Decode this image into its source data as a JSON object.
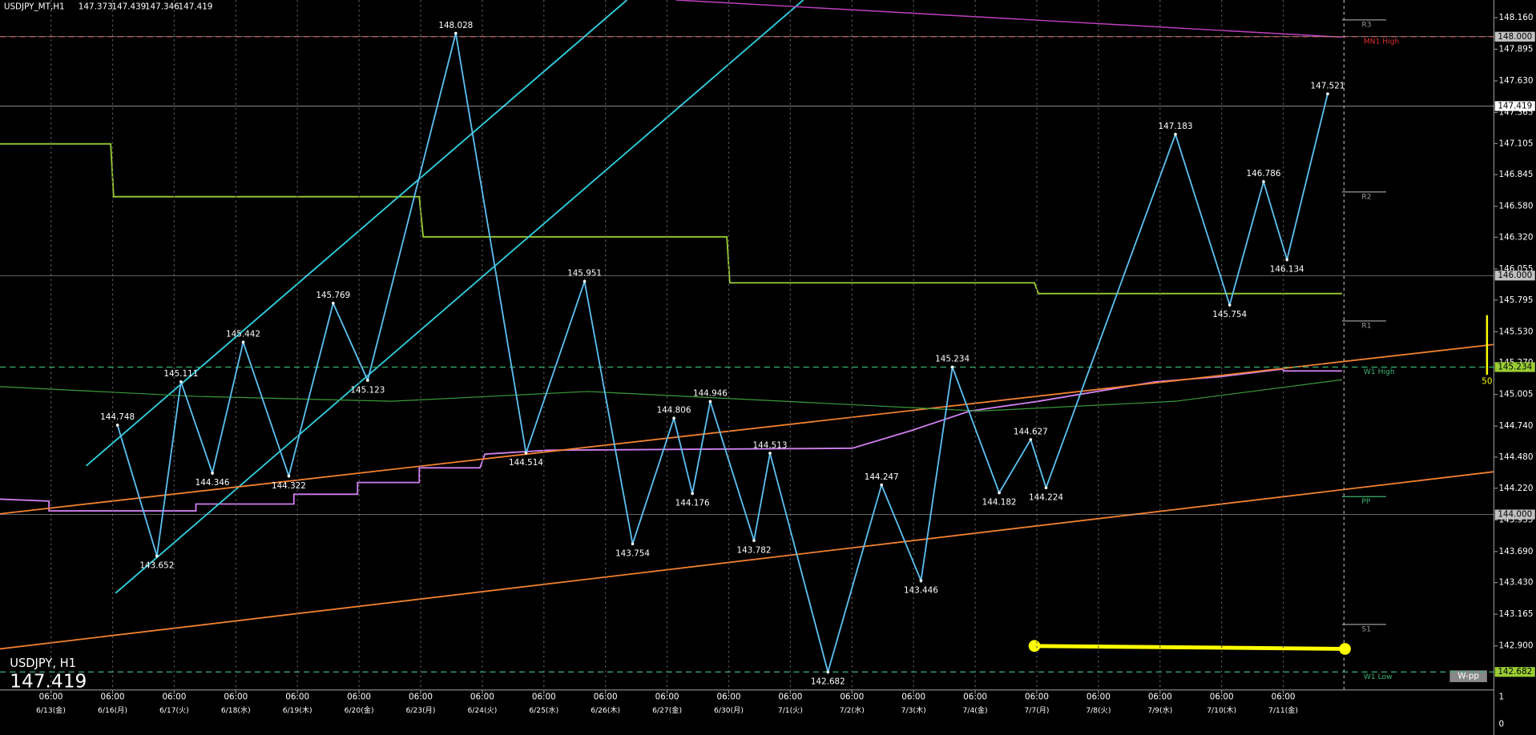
{
  "header": {
    "symbol": "USDJPY_MT,H1",
    "ohlc": [
      147.373,
      147.439,
      147.346,
      147.419
    ]
  },
  "corner": {
    "label": "USDJPY, H1",
    "price": 147.419
  },
  "chart_data": {
    "type": "line",
    "session_label": "06:00",
    "categories": [
      "6/13(金)",
      "6/16(月)",
      "6/17(火)",
      "6/18(水)",
      "6/19(木)",
      "6/20(金)",
      "6/23(月)",
      "6/24(火)",
      "6/25(水)",
      "6/26(木)",
      "6/27(金)",
      "6/30(月)",
      "7/1(火)",
      "7/2(水)",
      "7/3(木)",
      "7/4(金)",
      "7/7(月)",
      "7/8(火)",
      "7/9(水)",
      "7/10(木)",
      "7/11(金)"
    ],
    "xlim": [
      -0.827,
      23.418
    ],
    "ylim": [
      142.531,
      148.307
    ],
    "yticks": [
      {
        "value": 148.16,
        "label": "148.160"
      },
      147.895,
      {
        "value": 147.63,
        "label": "147.630"
      },
      147.365,
      147.105,
      146.845,
      {
        "value": 146.58,
        "label": "146.580"
      },
      {
        "value": 146.32,
        "label": "146.320"
      },
      146.055,
      145.795,
      {
        "value": 145.53,
        "label": "145.530"
      },
      {
        "value": 145.27,
        "label": "145.270"
      },
      145.005,
      {
        "value": 144.74,
        "label": "144.740"
      },
      {
        "value": 144.48,
        "label": "144.480"
      },
      {
        "value": 144.22,
        "label": "144.220"
      },
      143.955,
      {
        "value": 143.69,
        "label": "143.690"
      },
      {
        "value": 143.43,
        "label": "143.430"
      },
      143.165,
      {
        "value": 142.9,
        "label": "142.900"
      }
    ],
    "x": [
      1.08,
      1.72,
      2.11,
      2.62,
      3.12,
      3.86,
      4.58,
      5.14,
      6.57,
      7.71,
      8.66,
      9.44,
      10.11,
      10.41,
      10.7,
      11.41,
      11.67,
      12.61,
      13.48,
      14.12,
      14.63,
      15.39,
      15.9,
      16.15,
      18.25,
      19.13,
      19.68,
      20.06,
      20.72
    ],
    "values": [
      144.748,
      143.652,
      145.111,
      144.346,
      145.442,
      144.322,
      145.769,
      145.123,
      148.028,
      144.514,
      145.951,
      143.754,
      144.806,
      144.176,
      144.946,
      143.782,
      144.513,
      142.682,
      144.247,
      143.446,
      145.234,
      144.182,
      144.627,
      144.224,
      147.183,
      145.754,
      146.786,
      146.134,
      147.521
    ],
    "color": "#5bc0f0",
    "price_tags": [
      {
        "value": 148,
        "label": "148.000",
        "color": "#c0c0c0"
      },
      {
        "value": 147.419,
        "label": "147.419",
        "color": "#ffffff"
      },
      {
        "value": 146,
        "label": "146.000",
        "color": "#c0c0c0"
      },
      {
        "value": 145.234,
        "label": "145.234",
        "color": "#9acd32"
      },
      {
        "value": 144,
        "label": "144.000",
        "color": "#c0c0c0"
      },
      {
        "value": 142.682,
        "label": "142.682",
        "color": "#9acd32"
      }
    ],
    "levels": [
      {
        "name": "R3",
        "value": 148.14,
        "color": "#9a9a9a"
      },
      {
        "name": "R2",
        "value": 146.7,
        "color": "#9a9a9a"
      },
      {
        "name": "R1",
        "value": 145.62,
        "color": "#9a9a9a"
      },
      {
        "name": "PP",
        "value": 144.15,
        "color": "#3cb371"
      },
      {
        "name": "S1",
        "value": 143.08,
        "color": "#9a9a9a"
      }
    ],
    "dashed_levels": [
      {
        "name": "MN1 High",
        "value": 148,
        "color": "#e03030"
      },
      {
        "name": "W1 High",
        "value": 145.234,
        "color": "#3cb371"
      },
      {
        "name": "W1 Low",
        "value": 142.682,
        "color": "#3cb371"
      }
    ],
    "tool_label": "W-pp",
    "fib_label": "50",
    "subwindow_scale": [
      1,
      0
    ]
  }
}
